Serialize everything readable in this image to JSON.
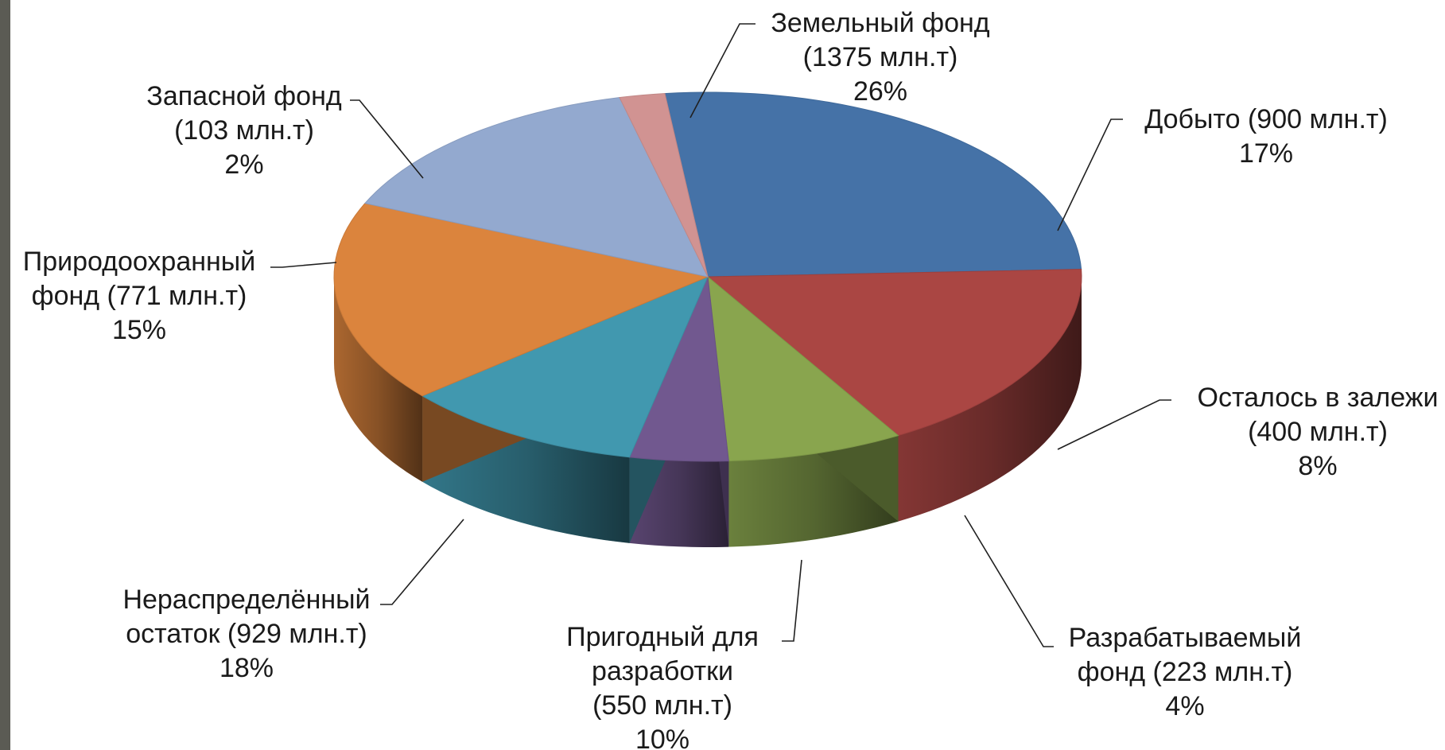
{
  "chart_data": {
    "type": "pie",
    "style": "3d-exploded-tilted",
    "unit": "млн.т",
    "slices": [
      {
        "name": "Земельный фонд",
        "value": 1375,
        "percent": 26,
        "color": "#4572A7",
        "label_lines": [
          "Земельный фонд",
          "(1375 млн.т)",
          "26%"
        ]
      },
      {
        "name": "Добыто",
        "value": 900,
        "percent": 17,
        "color": "#AA4643",
        "label_lines": [
          "Добыто (900 млн.т)",
          "17%"
        ]
      },
      {
        "name": "Осталось в залежи",
        "value": 400,
        "percent": 8,
        "color": "#89A54E",
        "label_lines": [
          "Осталось в залежи",
          "(400 млн.т)",
          "8%"
        ]
      },
      {
        "name": "Разрабатываемый фонд",
        "value": 223,
        "percent": 4,
        "color": "#71588F",
        "label_lines": [
          "Разрабатываемый",
          "фонд (223 млн.т)",
          "4%"
        ]
      },
      {
        "name": "Пригодный для разработки",
        "value": 550,
        "percent": 10,
        "color": "#4198AF",
        "label_lines": [
          "Пригодный для",
          "разработки",
          "(550 млн.т)",
          "10%"
        ]
      },
      {
        "name": "Нераспределённый остаток",
        "value": 929,
        "percent": 18,
        "color": "#DB843D",
        "label_lines": [
          "Нераспределённый",
          "остаток (929 млн.т)",
          "18%"
        ]
      },
      {
        "name": "Природоохранный фонд",
        "value": 771,
        "percent": 15,
        "color": "#93A9CF",
        "label_lines": [
          "Природоохранный",
          "фонд (771 млн.т)",
          "15%"
        ]
      },
      {
        "name": "Запасной фонд",
        "value": 103,
        "percent": 2,
        "color": "#D19392",
        "label_lines": [
          "Запасной фонд",
          "(103 млн.т)",
          "2%"
        ]
      }
    ]
  },
  "frame": {
    "color": "#5b5b54"
  }
}
